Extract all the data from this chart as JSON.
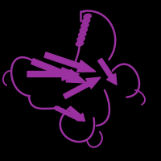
{
  "background_color": "#000000",
  "protein_color": "#9b30a0",
  "figsize": [
    2.0,
    2.0
  ],
  "dpi": 100
}
